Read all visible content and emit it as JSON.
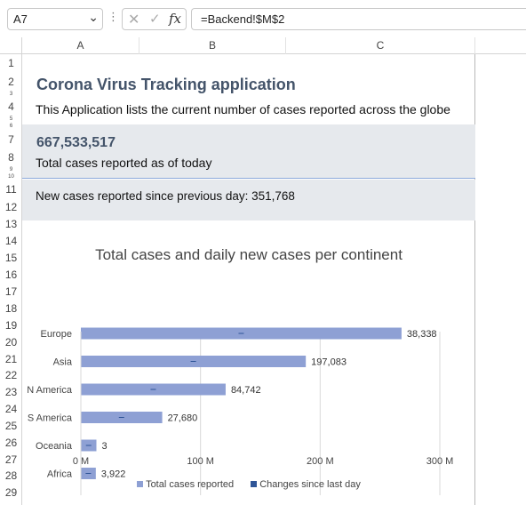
{
  "formula_bar": {
    "name_box": "A7",
    "name_box_chevron": "⌄",
    "more_dots": "⋮",
    "cancel_glyph": "✕",
    "enter_glyph": "✓",
    "fx_glyph": "fx",
    "formula": "=Backend!$M$2"
  },
  "columns": [
    {
      "label": "A"
    },
    {
      "label": "B"
    },
    {
      "label": "C"
    }
  ],
  "rows": [
    "1",
    "2",
    "3",
    "4",
    "5",
    "6",
    "7",
    "8",
    "9",
    "10",
    "11",
    "12",
    "13",
    "14",
    "15",
    "16",
    "17",
    "18",
    "19",
    "20",
    "21",
    "22",
    "23",
    "24",
    "25",
    "26",
    "27",
    "28",
    "29"
  ],
  "sheet": {
    "title": "Corona Virus Tracking application",
    "subtitle": "This Application lists the current number of cases reported across the globe",
    "total_cases": "667,533,517",
    "total_label": "Total cases reported as of today",
    "new_cases": "New cases reported since previous day: 351,768"
  },
  "colors": {
    "title": "#44546a",
    "band": "#e6e9ed",
    "bar_total": "#8ea0d4",
    "bar_change": "#2f5597"
  },
  "chart_data": {
    "type": "bar",
    "orientation": "horizontal",
    "title": "Total cases and daily new cases per continent",
    "categories": [
      "Europe",
      "Asia",
      "N America",
      "S America",
      "Oceania",
      "Africa"
    ],
    "series": [
      {
        "name": "Total cases reported",
        "values": [
          268000000,
          188000000,
          121000000,
          68000000,
          13000000,
          12500000
        ]
      },
      {
        "name": "Changes since last day",
        "values": [
          38338,
          197083,
          84742,
          27680,
          3,
          3922
        ]
      }
    ],
    "data_labels": [
      "38,338",
      "197,083",
      "84,742",
      "27,680",
      "3",
      "3,922"
    ],
    "x_ticks": [
      "0 M",
      "100 M",
      "200 M",
      "300 M"
    ],
    "x_tick_values": [
      0,
      100000000,
      200000000,
      300000000
    ],
    "xlim": [
      0,
      300000000
    ],
    "grid": true,
    "legend_position": "bottom"
  }
}
